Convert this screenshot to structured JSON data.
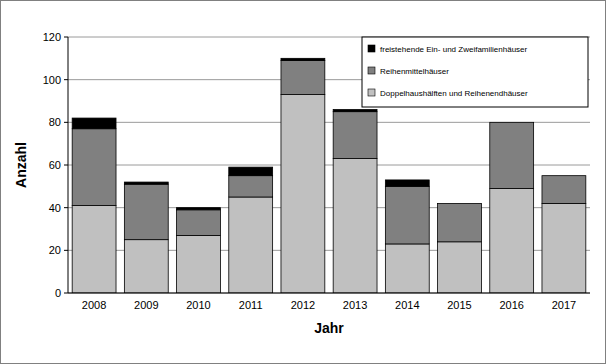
{
  "chart_data": {
    "type": "bar",
    "stacked": true,
    "grid": true,
    "legend": "top-right",
    "x_label": "Jahr",
    "y_label": "Anzahl",
    "categories": [
      "2008",
      "2009",
      "2010",
      "2011",
      "2012",
      "2013",
      "2014",
      "2015",
      "2016",
      "2017"
    ],
    "series": [
      {
        "name": "Doppelhaushälften und Reihenendhäuser",
        "color": "#c0c0c0",
        "values": [
          41,
          25,
          27,
          45,
          93,
          63,
          23,
          24,
          49,
          42
        ]
      },
      {
        "name": "Reihenmittelhäuser",
        "color": "#808080",
        "values": [
          36,
          26,
          12,
          10,
          16,
          22,
          27,
          18,
          31,
          13
        ]
      },
      {
        "name": "freistehende Ein- und Zweifamilienhäuser",
        "color": "#000000",
        "values": [
          5,
          1,
          1,
          4,
          1,
          1,
          3,
          0,
          0,
          0
        ]
      }
    ],
    "ylim": [
      0,
      120
    ],
    "yticks": [
      0,
      20,
      40,
      60,
      80,
      100,
      120
    ]
  }
}
